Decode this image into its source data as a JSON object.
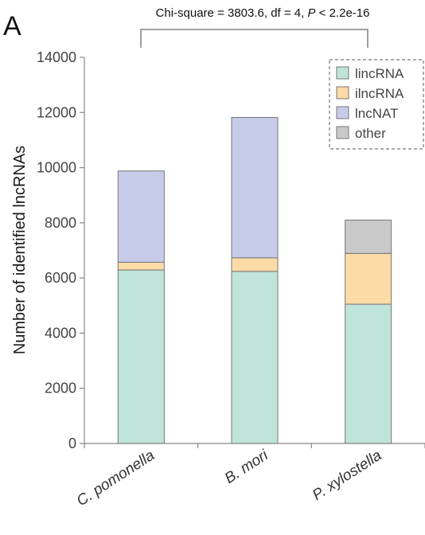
{
  "panel_label": "A",
  "stat_prefix": "Chi-square = 3803.6, df = 4, ",
  "stat_p": "P",
  "stat_suffix": " < 2.2e-16",
  "chart_data": {
    "type": "bar",
    "stacked": true,
    "categories": [
      "C. pomonella",
      "B. mori",
      "P. xylostella"
    ],
    "series": [
      {
        "name": "lincRNA",
        "color": "#bfe4d9",
        "values": [
          6290,
          6240,
          5050
        ]
      },
      {
        "name": "ilncRNA",
        "color": "#fddba6",
        "values": [
          280,
          490,
          1840
        ]
      },
      {
        "name": "lncNAT",
        "color": "#c6cbe9",
        "values": [
          3310,
          5090,
          0
        ]
      },
      {
        "name": "other",
        "color": "#c9c9c9",
        "values": [
          0,
          0,
          1210
        ]
      }
    ],
    "ylabel": "Number of identified lncRNAs",
    "ylim": [
      0,
      14000
    ],
    "yticks": [
      0,
      2000,
      4000,
      6000,
      8000,
      10000,
      12000,
      14000
    ],
    "legend_position": "top-right",
    "grid": false
  }
}
